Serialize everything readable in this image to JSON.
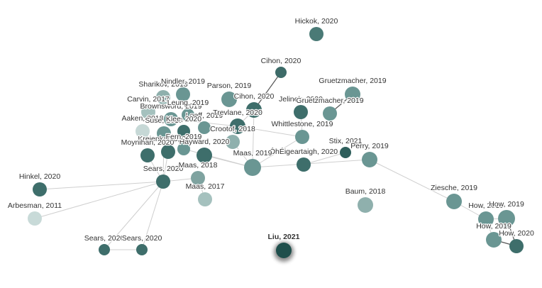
{
  "nodes": [
    {
      "label": "Hickok, 2020"
    },
    {
      "label": "Cihon, 2020"
    },
    {
      "label": "Gruetzmacher, 2019"
    },
    {
      "label": "Sharikov, 2018"
    },
    {
      "label": "Nindler, 2019"
    },
    {
      "label": "Parson, 2019"
    },
    {
      "label": "Cihon, 2020"
    },
    {
      "label": "Jelinek, 2020"
    },
    {
      "label": "Gruetzmacher, 2019"
    },
    {
      "label": "Carvin, 2017"
    },
    {
      "label": "Brownsword, 2019"
    },
    {
      "label": "Leung, 2019"
    },
    {
      "label": "Loeff, 2019"
    },
    {
      "label": "Trevlane, 2020"
    },
    {
      "label": "Aaken, 2018"
    },
    {
      "label": "Suse, 2019"
    },
    {
      "label": "Klee, 2020"
    },
    {
      "label": "Crootof, 2018"
    },
    {
      "label": "Whittlestone, 2019"
    },
    {
      "label": "Kreienkamp, 2020"
    },
    {
      "label": "Moynihan, 2020"
    },
    {
      "label": "Hayward, 2020"
    },
    {
      "label": "Fern, 2019"
    },
    {
      "label": "Stix, 2021"
    },
    {
      "label": "Perry, 2019"
    },
    {
      "label": "ÓhÉigeartaigh, 2020"
    },
    {
      "label": "Maas, 2019"
    },
    {
      "label": "Sears, 2020"
    },
    {
      "label": "Maas, 2018"
    },
    {
      "label": "Hinkel, 2020"
    },
    {
      "label": "Maas, 2017"
    },
    {
      "label": "Baum, 2018"
    },
    {
      "label": "Ziesche, 2019"
    },
    {
      "label": "Arbesman, 2011"
    },
    {
      "label": "How, 2019"
    },
    {
      "label": "How, 2019"
    },
    {
      "label": "How, 2019"
    },
    {
      "label": "How, 2020"
    },
    {
      "label": "Sears, 2020"
    },
    {
      "label": "Sears, 2020"
    },
    {
      "label": "Liu, 2021"
    }
  ]
}
